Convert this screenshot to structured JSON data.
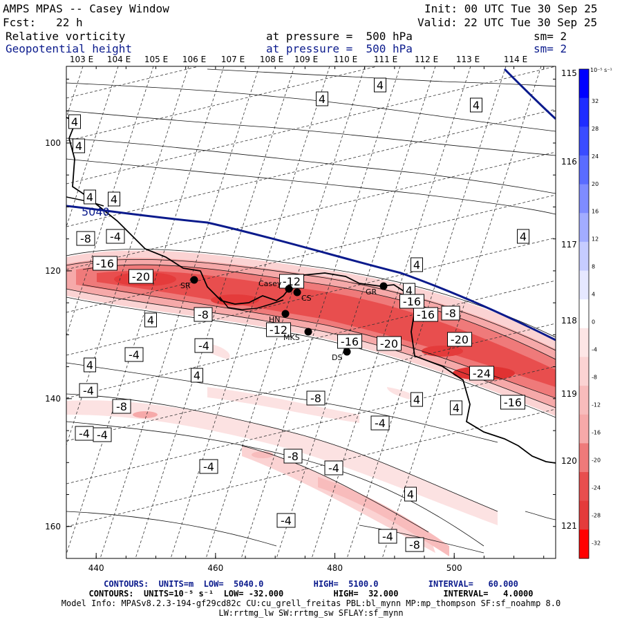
{
  "header": {
    "title": "AMPS MPAS -- Casey Window",
    "init": "Init: 00 UTC Tue 30 Sep 25",
    "forecast": "Fcst:   22 h",
    "valid": "Valid: 22 UTC Tue 30 Sep 25",
    "field1_name": "Relative vorticity",
    "field1_level": "at pressure =  500 hPa",
    "field1_sm": "sm= 2",
    "field2_name": "Geopotential height",
    "field2_level": "at pressure =  500 hPa",
    "field2_sm": "sm= 2"
  },
  "colorbar": {
    "unit": "10⁻⁵ s⁻¹",
    "levels": [
      "32",
      "28",
      "24",
      "20",
      "16",
      "12",
      "8",
      "4",
      "0",
      "-4",
      "-8",
      "-12",
      "-16",
      "-20",
      "-24",
      "-28",
      "-32"
    ]
  },
  "stations": [
    {
      "name": "SR"
    },
    {
      "name": "Casey"
    },
    {
      "name": "CS"
    },
    {
      "name": "GR"
    },
    {
      "name": "HN"
    },
    {
      "name": "MKS"
    },
    {
      "name": "DS"
    }
  ],
  "footer": {
    "contours1": "CONTOURS:  UNITS=m  LOW=  5040.0          HIGH=  5100.0          INTERVAL=   60.000",
    "contours2": "CONTOURS:  UNITS=10⁻⁵ s⁻¹  LOW= -32.000          HIGH=  32.000         INTERVAL=   4.0000",
    "model_info": "Model Info: MPASv8.2.3-194-gf29cd82c CU:cu_grell_freitas PBL:bl_mynn MP:mp_thompson SF:sf_noahmp 8.0",
    "model_info2": "LW:rrtmg_lw SW:rrtmg_sw SFLAY:sf_mynn"
  },
  "chart_data": {
    "type": "heatmap",
    "title": "Relative vorticity and Geopotential height at 500 hPa",
    "x_ticks": [
      440,
      460,
      480,
      500
    ],
    "y_ticks": [
      100,
      120,
      140,
      160
    ],
    "xlim": [
      435,
      517
    ],
    "ylim": [
      88,
      165
    ],
    "top_lon_labels": [
      "103 E",
      "104 E",
      "105 E",
      "106 E",
      "107 E",
      "108 E",
      "109 E",
      "110 E",
      "111 E",
      "112 E",
      "113 E",
      "114 E"
    ],
    "right_lat_labels": [
      "115 E",
      "116 E",
      "117 E",
      "118 E",
      "119 E",
      "120 E",
      "121 E"
    ],
    "height_contour_label": "5040",
    "contour_labels": [
      "4",
      "4",
      "4",
      "4",
      "4",
      "4",
      "4",
      "4",
      "4",
      "4",
      "4",
      "4",
      "4",
      "4",
      "4",
      "4",
      "-4",
      "-4",
      "-4",
      "-4",
      "-4",
      "-4",
      "-4",
      "-4",
      "-4",
      "-4",
      "-4",
      "-8",
      "-8",
      "-8",
      "-8",
      "-8",
      "-8",
      "-8",
      "-12",
      "-12",
      "-16",
      "-16",
      "-16",
      "-16",
      "-16",
      "-20",
      "-20",
      "-20",
      "-24"
    ],
    "vorticity_range": [
      -32,
      32
    ],
    "vorticity_interval": 4,
    "height_range": [
      5040,
      5100
    ],
    "height_interval": 60
  }
}
